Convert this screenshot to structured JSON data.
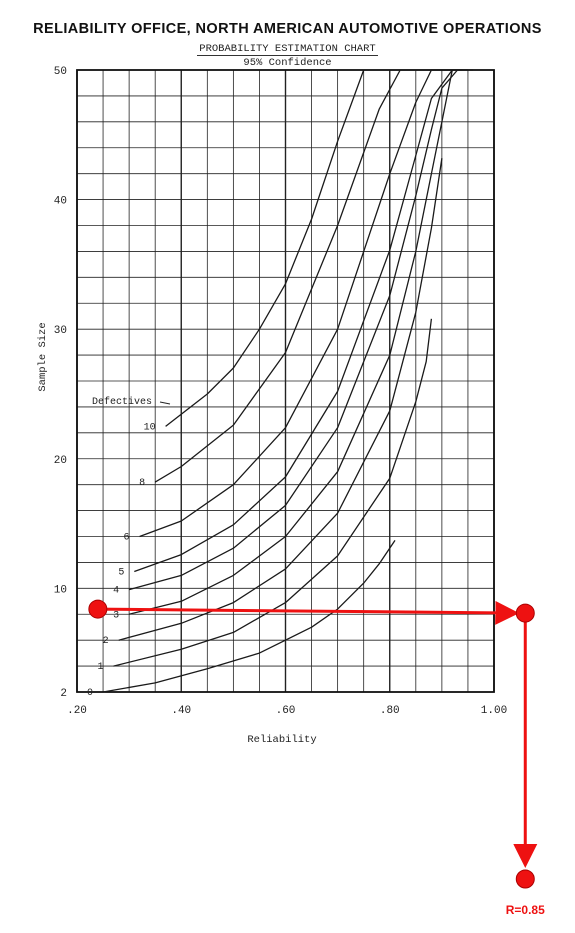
{
  "header": {
    "title": "RELIABILITY OFFICE, NORTH AMERICAN AUTOMOTIVE OPERATIONS",
    "chart_title": "PROBABILITY ESTIMATION CHART",
    "confidence": "95% Confidence"
  },
  "chart_data": {
    "type": "line",
    "title": "PROBABILITY ESTIMATION CHART",
    "subtitle": "95% Confidence",
    "xlabel": "Reliability",
    "ylabel": "Sample Size",
    "xlim": [
      0.2,
      1.0
    ],
    "ylim": [
      2,
      50
    ],
    "x_ticks": [
      0.2,
      0.4,
      0.6,
      0.8,
      1.0
    ],
    "x_tick_labels": [
      ".20",
      ".40",
      ".60",
      ".80",
      "1.00"
    ],
    "y_ticks": [
      2,
      10,
      20,
      30,
      40,
      50
    ],
    "y_tick_labels": [
      "2",
      "10",
      "20",
      "30",
      "40",
      "50"
    ],
    "grid": true,
    "legend_title": "Defectives",
    "series_labels": [
      "0",
      "1",
      "2",
      "3",
      "4",
      "5",
      "6",
      "8",
      "10"
    ],
    "series": [
      {
        "name": "0",
        "x": [
          0.25,
          0.35,
          0.45,
          0.55,
          0.65,
          0.7,
          0.75,
          0.78,
          0.81
        ],
        "y": [
          2.0,
          2.7,
          3.8,
          5.0,
          7.0,
          8.4,
          10.4,
          11.9,
          13.7
        ]
      },
      {
        "name": "1",
        "x": [
          0.27,
          0.4,
          0.5,
          0.6,
          0.7,
          0.8,
          0.85,
          0.87,
          0.88
        ],
        "y": [
          4.0,
          5.3,
          6.6,
          8.9,
          12.5,
          18.5,
          24.4,
          27.5,
          30.8
        ]
      },
      {
        "name": "2",
        "x": [
          0.28,
          0.4,
          0.5,
          0.6,
          0.7,
          0.8,
          0.85,
          0.88,
          0.9
        ],
        "y": [
          6.0,
          7.3,
          8.9,
          11.5,
          15.8,
          23.7,
          31.3,
          37.8,
          43.2
        ]
      },
      {
        "name": "3",
        "x": [
          0.3,
          0.4,
          0.5,
          0.6,
          0.7,
          0.8,
          0.85,
          0.88,
          0.9,
          0.92
        ],
        "y": [
          8.0,
          9.0,
          11.0,
          14.0,
          19.0,
          28.0,
          36.0,
          42.0,
          46.0,
          50.0
        ]
      },
      {
        "name": "4",
        "x": [
          0.3,
          0.4,
          0.5,
          0.6,
          0.7,
          0.8,
          0.85,
          0.88,
          0.9,
          0.93
        ],
        "y": [
          9.9,
          11.0,
          13.1,
          16.4,
          22.4,
          32.6,
          40.3,
          45.4,
          48.6,
          50.0
        ]
      },
      {
        "name": "5",
        "x": [
          0.31,
          0.4,
          0.5,
          0.6,
          0.7,
          0.8,
          0.85,
          0.88,
          0.92,
          0.94
        ],
        "y": [
          11.3,
          12.6,
          14.9,
          18.6,
          25.2,
          36.1,
          43.4,
          47.8,
          50.0,
          50.0
        ]
      },
      {
        "name": "6",
        "x": [
          0.32,
          0.4,
          0.5,
          0.6,
          0.7,
          0.8,
          0.85,
          0.88,
          0.92,
          0.95
        ],
        "y": [
          14.0,
          15.2,
          18.0,
          22.4,
          30.0,
          42.0,
          47.5,
          50.0,
          50.0,
          50.0
        ]
      },
      {
        "name": "8",
        "x": [
          0.35,
          0.4,
          0.5,
          0.6,
          0.7,
          0.78,
          0.82,
          0.85,
          0.92,
          0.96
        ],
        "y": [
          18.2,
          19.4,
          22.6,
          28.2,
          38.0,
          47.0,
          50.0,
          50.0,
          50.0,
          50.0
        ]
      },
      {
        "name": "10",
        "x": [
          0.37,
          0.45,
          0.5,
          0.55,
          0.6,
          0.65,
          0.7,
          0.75,
          0.97
        ],
        "y": [
          22.5,
          25.0,
          27.0,
          30.0,
          33.5,
          38.5,
          44.5,
          50.0,
          50.0
        ]
      }
    ],
    "annotation": {
      "label": "R=0.85",
      "start": {
        "x": 0.24,
        "y": 8.4
      },
      "end": {
        "x": 1.06,
        "y": 8.4
      }
    }
  }
}
